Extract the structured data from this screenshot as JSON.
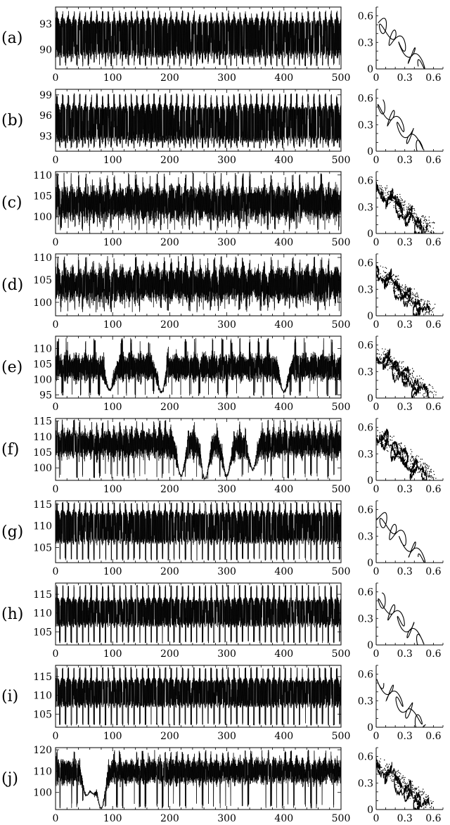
{
  "figure": {
    "time_axis": {
      "xlim": [
        0,
        500
      ],
      "xticks": [
        0,
        100,
        200,
        300,
        400,
        500
      ]
    },
    "phase_axis": {
      "lim": [
        0,
        0.7
      ],
      "ticks": [
        0,
        0.3,
        0.6
      ],
      "tick_labels": [
        "0",
        "0.3",
        "0.6"
      ]
    }
  },
  "chart_data": [
    {
      "panel": "(a)",
      "type": "line",
      "xlim": [
        0,
        500
      ],
      "ylim": [
        87.7,
        95.0
      ],
      "yticks": [
        90,
        93
      ],
      "band_low": 88.8,
      "band_high": 94.0,
      "lo_clip": 88.0,
      "hi_clip": 94.6,
      "period": 10,
      "style": "dense",
      "dips": []
    },
    {
      "panel": "(b)",
      "type": "line",
      "xlim": [
        0,
        500
      ],
      "ylim": [
        90.8,
        99.8
      ],
      "yticks": [
        93,
        96,
        99
      ],
      "band_low": 91.8,
      "band_high": 98.0,
      "lo_clip": 91.2,
      "hi_clip": 99.2,
      "period": 10,
      "style": "dense",
      "dips": []
    },
    {
      "panel": "(c)",
      "type": "line",
      "xlim": [
        0,
        500
      ],
      "ylim": [
        96.0,
        110.8
      ],
      "yticks": [
        100,
        105,
        110
      ],
      "band_low": 99.0,
      "band_high": 107.5,
      "lo_clip": 96.5,
      "hi_clip": 110.5,
      "period": 12.5,
      "style": "irregular",
      "dips": []
    },
    {
      "panel": "(d)",
      "type": "line",
      "xlim": [
        0,
        500
      ],
      "ylim": [
        97.0,
        110.8
      ],
      "yticks": [
        100,
        105,
        110
      ],
      "band_low": 100.0,
      "band_high": 108.0,
      "lo_clip": 97.8,
      "hi_clip": 110.3,
      "period": 12.5,
      "style": "irregular",
      "dips": []
    },
    {
      "panel": "(e)",
      "type": "line",
      "xlim": [
        0,
        500
      ],
      "ylim": [
        94.0,
        114.0
      ],
      "yticks": [
        95,
        100,
        105,
        110
      ],
      "band_low": 99.5,
      "band_high": 108.5,
      "lo_clip": 94.5,
      "hi_clip": 113.5,
      "period": 16,
      "style": "irregular",
      "dips": [
        [
          95,
          96.5
        ],
        [
          185,
          96.0
        ],
        [
          400,
          96.0
        ]
      ]
    },
    {
      "panel": "(f)",
      "type": "line",
      "xlim": [
        0,
        500
      ],
      "ylim": [
        96.0,
        115.8
      ],
      "yticks": [
        100,
        105,
        110,
        115
      ],
      "band_low": 103.0,
      "band_high": 112.5,
      "lo_clip": 96.5,
      "hi_clip": 115.5,
      "period": 10,
      "style": "irregular",
      "dips": [
        [
          220,
          97.5
        ],
        [
          262,
          96.5
        ],
        [
          300,
          97.5
        ],
        [
          345,
          99.5
        ]
      ]
    },
    {
      "panel": "(g)",
      "type": "line",
      "xlim": [
        0,
        500
      ],
      "ylim": [
        101.5,
        115.8
      ],
      "yticks": [
        105,
        110,
        115
      ],
      "band_low": 105.5,
      "band_high": 114.0,
      "lo_clip": 102.0,
      "hi_clip": 115.5,
      "period": 10,
      "style": "dense",
      "dips": []
    },
    {
      "panel": "(h)",
      "type": "line",
      "xlim": [
        0,
        500
      ],
      "ylim": [
        101.5,
        118.0
      ],
      "yticks": [
        105,
        110,
        115
      ],
      "band_low": 106.0,
      "band_high": 114.5,
      "lo_clip": 102.0,
      "hi_clip": 117.5,
      "period": 10,
      "style": "dense",
      "dips": []
    },
    {
      "panel": "(i)",
      "type": "line",
      "xlim": [
        0,
        500
      ],
      "ylim": [
        101.5,
        118.0
      ],
      "yticks": [
        105,
        110,
        115
      ],
      "band_low": 106.5,
      "band_high": 115.0,
      "lo_clip": 102.0,
      "hi_clip": 117.5,
      "period": 10,
      "style": "dense",
      "dips": []
    },
    {
      "panel": "(j)",
      "type": "line",
      "xlim": [
        0,
        500
      ],
      "ylim": [
        92.0,
        121.0
      ],
      "yticks": [
        100,
        110,
        120
      ],
      "band_low": 104.0,
      "band_high": 116.0,
      "lo_clip": 92.5,
      "hi_clip": 120.0,
      "period": 10,
      "style": "irregular",
      "dips": [
        [
          55,
          98.0
        ],
        [
          65,
          100.0
        ],
        [
          80,
          92.5
        ]
      ]
    }
  ]
}
